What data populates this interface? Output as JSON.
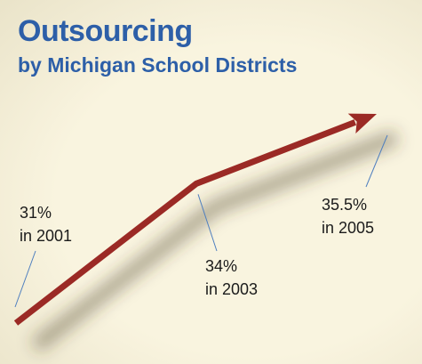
{
  "title": "Outsourcing",
  "subtitle": "by Michigan School Districts",
  "colors": {
    "background": "#f9f4df",
    "title": "#2d5fa8",
    "line": "#9b2a25",
    "leader": "#4f7fbf"
  },
  "chart_data": {
    "type": "line",
    "title": "Outsourcing",
    "subtitle": "by Michigan School Districts",
    "xlabel": "",
    "ylabel": "",
    "grid": false,
    "x": [
      2001,
      2003,
      2005
    ],
    "series": [
      {
        "values": [
          31,
          34,
          35.5
        ]
      }
    ],
    "data_labels": [
      {
        "value": "31%",
        "year": "in 2001"
      },
      {
        "value": "34%",
        "year": "in 2003"
      },
      {
        "value": "35.5%",
        "year": "in 2005"
      }
    ]
  }
}
